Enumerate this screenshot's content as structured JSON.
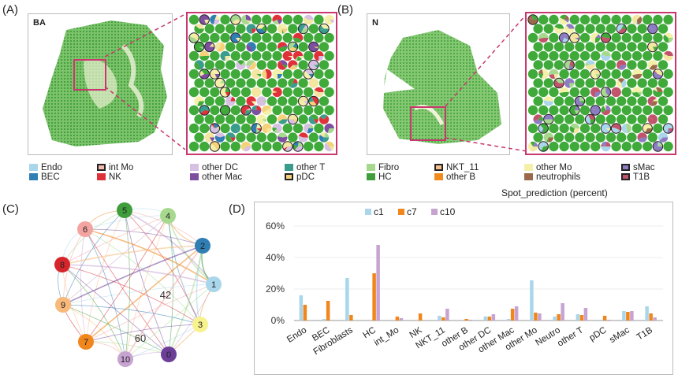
{
  "panels": {
    "a": {
      "letter": "(A)",
      "corner": "BA"
    },
    "b": {
      "letter": "(B)",
      "corner": "N"
    },
    "c": {
      "letter": "(C)"
    },
    "d": {
      "letter": "(D)"
    }
  },
  "legend_a": [
    {
      "label": "Endo",
      "color": "#a9d6ea",
      "outlined": false
    },
    {
      "label": "BEC",
      "color": "#2f7eb4",
      "outlined": false
    },
    {
      "label": "int Mo",
      "color": "#f4b8b4",
      "outlined": true
    },
    {
      "label": "NK",
      "color": "#e0313a",
      "outlined": false
    },
    {
      "label": "other DC",
      "color": "#d7c1e2",
      "outlined": false
    },
    {
      "label": "other Mac",
      "color": "#7d4fa0",
      "outlined": false
    },
    {
      "label": "other T",
      "color": "#3a9d8c",
      "outlined": false
    },
    {
      "label": "pDC",
      "color": "#f5d27a",
      "outlined": true
    }
  ],
  "legend_b": [
    {
      "label": "Fibro",
      "color": "#a6d98e",
      "outlined": false
    },
    {
      "label": "HC",
      "color": "#3f9d3c",
      "outlined": false
    },
    {
      "label": "NKT_11",
      "color": "#f6c08c",
      "outlined": true
    },
    {
      "label": "other B",
      "color": "#f08c1e",
      "outlined": false
    },
    {
      "label": "other Mo",
      "color": "#f4f0a8",
      "outlined": false
    },
    {
      "label": "neutrophils",
      "color": "#9b6a4a",
      "outlined": false
    },
    {
      "label": "sMac",
      "color": "#8e7cc3",
      "outlined": true
    },
    {
      "label": "T1B",
      "color": "#c1546b",
      "outlined": true
    }
  ],
  "spot_caption": "Spot_prediction (percent)",
  "network": {
    "nodes": [
      {
        "label": "5",
        "color": "#3f9d3c"
      },
      {
        "label": "4",
        "color": "#a6d98e"
      },
      {
        "label": "6",
        "color": "#f3a3a0"
      },
      {
        "label": "2",
        "color": "#2f7eb4"
      },
      {
        "label": "8",
        "color": "#d6262c"
      },
      {
        "label": "1",
        "color": "#a9d6ea"
      },
      {
        "label": "9",
        "color": "#f8b97a"
      },
      {
        "label": "3",
        "color": "#f7f28e"
      },
      {
        "label": "7",
        "color": "#f0861c"
      },
      {
        "label": "10",
        "color": "#c7a3d1"
      },
      {
        "label": "0",
        "color": "#6b3f98"
      }
    ],
    "center_labels": [
      "42",
      "60"
    ]
  },
  "chart_data": {
    "type": "bar",
    "categories": [
      "Endo",
      "BEC",
      "Fibroblasts",
      "HC",
      "int_Mo",
      "NK",
      "NKT_11",
      "other B",
      "other DC",
      "other Mac",
      "other Mo",
      "Neutro",
      "other T",
      "pDC",
      "sMac",
      "T1B"
    ],
    "series": [
      {
        "name": "c1",
        "color": "#a9d6ea",
        "values": [
          16,
          1,
          27,
          0,
          0,
          0,
          3,
          0,
          2.5,
          1,
          25.5,
          2.5,
          4,
          0.5,
          6,
          9
        ]
      },
      {
        "name": "c7",
        "color": "#f0861c",
        "values": [
          10,
          12.5,
          3.5,
          30,
          2.5,
          4.5,
          2,
          1,
          2.5,
          7.5,
          5,
          4,
          3.5,
          3,
          5.5,
          4.5
        ]
      },
      {
        "name": "c10",
        "color": "#c7a3d1",
        "values": [
          0,
          0,
          0,
          48,
          1.5,
          0,
          7.5,
          0.5,
          4,
          9,
          4.5,
          11,
          8,
          0.5,
          6,
          2
        ]
      }
    ],
    "yticks": [
      "0%",
      "20%",
      "40%",
      "60%"
    ],
    "ylim": [
      0,
      60
    ],
    "legend_position": "top"
  }
}
